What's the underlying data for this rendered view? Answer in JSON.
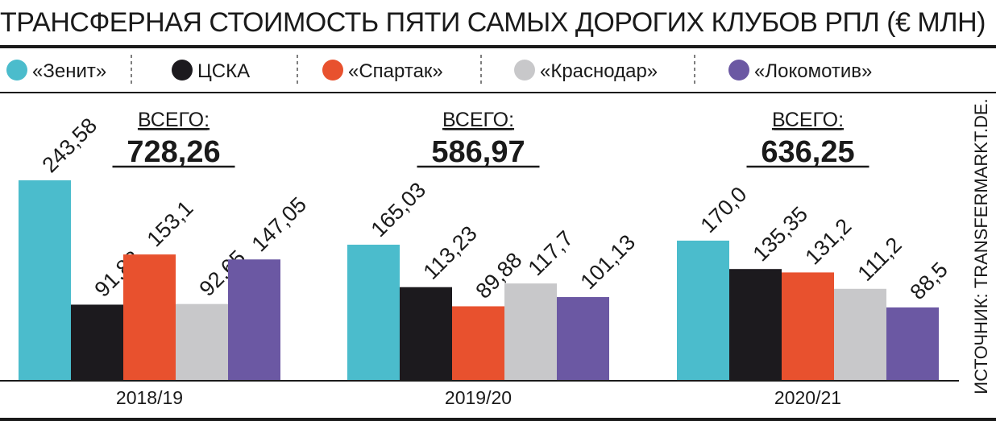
{
  "title": "ТРАНСФЕРНАЯ СТОИМОСТЬ ПЯТИ САМЫХ ДОРОГИХ КЛУБОВ РПЛ (€ МЛН)",
  "source": "ИСТОЧНИК: TRANSFERMARKT.DE.",
  "total_label": "ВСЕГО:",
  "colors": {
    "zenit": "#4bbccc",
    "cska": "#1c1a1e",
    "spartak": "#e8512e",
    "krasnodar": "#c8c8ca",
    "lokomotiv": "#6b58a3"
  },
  "chart_data": {
    "type": "bar",
    "title": "ТРАНСФЕРНАЯ СТОИМОСТЬ ПЯТИ САМЫХ ДОРОГИХ КЛУБОВ РПЛ (€ МЛН)",
    "categories": [
      "2018/19",
      "2019/20",
      "2020/21"
    ],
    "totals": [
      "728,26",
      "586,97",
      "636,25"
    ],
    "series": [
      {
        "name": "«Зенит»",
        "color": "#4bbccc",
        "values": [
          243.58,
          165.03,
          170.0
        ],
        "labels": [
          "243,58",
          "165,03",
          "170,0"
        ]
      },
      {
        "name": "ЦСКА",
        "color": "#1c1a1e",
        "values": [
          91.88,
          113.23,
          135.35
        ],
        "labels": [
          "91,88",
          "113,23",
          "135,35"
        ]
      },
      {
        "name": "«Спартак»",
        "color": "#e8512e",
        "values": [
          153.1,
          89.88,
          131.2
        ],
        "labels": [
          "153,1",
          "89,88",
          "131,2"
        ]
      },
      {
        "name": "«Краснодар»",
        "color": "#c8c8ca",
        "values": [
          92.65,
          117.7,
          111.2
        ],
        "labels": [
          "92,65",
          "117,7",
          "111,2"
        ]
      },
      {
        "name": "«Локомотив»",
        "color": "#6b58a3",
        "values": [
          147.05,
          101.13,
          88.5
        ],
        "labels": [
          "147,05",
          "101,13",
          "88,5"
        ]
      }
    ],
    "xlabel": "",
    "ylabel": "",
    "ylim": [
      0,
      250
    ],
    "grid": false,
    "legend": "top"
  }
}
